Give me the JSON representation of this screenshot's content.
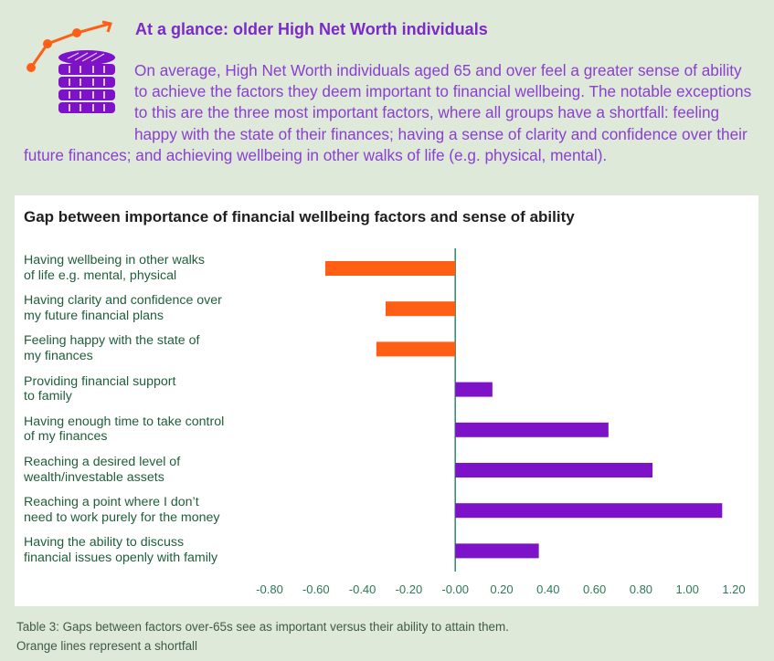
{
  "header": {
    "title": "At a glance: older High Net Worth individuals",
    "intro": "On average, High Net Worth individuals aged 65 and over feel a greater sense of ability to achieve the factors they deem important to financial wellbeing. The notable exceptions to this are the three most important factors, where all groups have a shortfall: feeling happy with the state of their finances; having a sense of clarity and confidence over their future finances; and achieving wellbeing in other walks of life (e.g. physical, mental)."
  },
  "icon": {
    "name": "coins-growth-icon"
  },
  "colors": {
    "shortfall": "#ff5f14",
    "positive": "#7d12c8",
    "axis": "#2e8b6a"
  },
  "chart_data": {
    "type": "bar",
    "orientation": "horizontal",
    "title": "Gap between importance of financial wellbeing factors and sense of ability",
    "categories": [
      [
        "Having wellbeing in other walks",
        "of life e.g. mental, physical"
      ],
      [
        "Having clarity and confidence over",
        "my future financial plans"
      ],
      [
        "Feeling happy with the state of",
        "my finances"
      ],
      [
        "Providing financial support",
        "to family"
      ],
      [
        "Having enough time to take control",
        "of my finances"
      ],
      [
        "Reaching a desired level of",
        "wealth/investable assets"
      ],
      [
        "Reaching a point where I don’t",
        "need to work purely for the money"
      ],
      [
        "Having the ability to discuss",
        "financial issues openly with family"
      ]
    ],
    "values": [
      -0.56,
      -0.3,
      -0.34,
      0.16,
      0.66,
      0.85,
      1.15,
      0.36
    ],
    "xlim": [
      -0.8,
      1.2
    ],
    "ticks": [
      "-0.80",
      "-0.60",
      "-0.40",
      "-0.20",
      "-0.00",
      "0.20",
      "0.40",
      "0.60",
      "0.80",
      "1.00",
      "1.20"
    ],
    "tick_values": [
      -0.8,
      -0.6,
      -0.4,
      -0.2,
      0,
      0.2,
      0.4,
      0.6,
      0.8,
      1.0,
      1.2
    ]
  },
  "caption": {
    "line1": "Table 3: Gaps between factors over-65s see as important versus their ability to attain them.",
    "line2": "Orange lines represent a shortfall"
  }
}
